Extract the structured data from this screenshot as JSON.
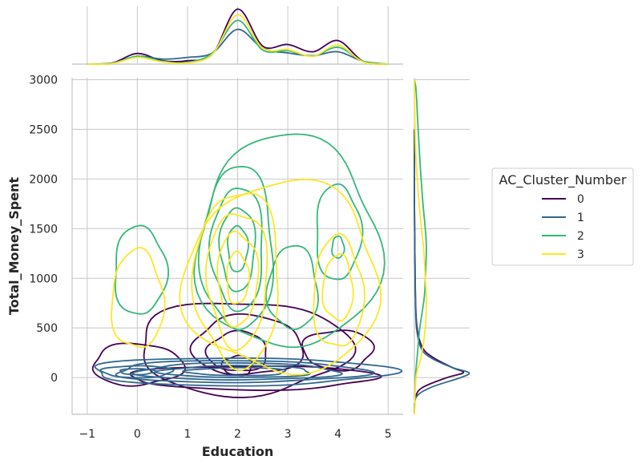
{
  "chart_data": {
    "type": "kde-contour-jointplot",
    "xlabel": "Education",
    "ylabel": "Total_Money_Spent",
    "xlim": [
      -1.3,
      5.3
    ],
    "ylim": [
      -370,
      3020
    ],
    "xticks": [
      -1,
      0,
      1,
      2,
      3,
      4,
      5
    ],
    "yticks": [
      0,
      500,
      1000,
      1500,
      2000,
      2500,
      3000
    ],
    "grid": true,
    "legend_title": "AC_Cluster_Number",
    "legend_position": "right",
    "series": [
      {
        "name": "0",
        "color": "#440154",
        "marginal_x": {
          "x": [
            -1.0,
            -0.5,
            0,
            0.5,
            1,
            1.5,
            2,
            2.5,
            3,
            3.5,
            4,
            4.5,
            5
          ],
          "density": [
            0,
            0.02,
            0.19,
            0.06,
            0.06,
            0.18,
            0.98,
            0.32,
            0.35,
            0.22,
            0.42,
            0.05,
            0
          ]
        },
        "marginal_y": {
          "y": [
            -370,
            -200,
            -100,
            0,
            50,
            100,
            200,
            300,
            500,
            800,
            1200,
            1800,
            2500
          ],
          "density": [
            0,
            0.02,
            0.15,
            0.6,
            0.9,
            0.7,
            0.35,
            0.15,
            0.05,
            0.02,
            0.01,
            0,
            0
          ]
        },
        "contours": [
          {
            "cx": 2.3,
            "cy": 0,
            "rx": 2.45,
            "ry": 120
          },
          {
            "cx": 2.1,
            "cy": 300,
            "rx": 2.1,
            "ry": 470
          },
          {
            "cx": 0.0,
            "cy": 130,
            "rx": 0.9,
            "ry": 210
          },
          {
            "cx": 2.2,
            "cy": 320,
            "rx": 1.1,
            "ry": 300
          },
          {
            "cx": 2.0,
            "cy": 260,
            "rx": 0.6,
            "ry": 200
          },
          {
            "cx": 2.0,
            "cy": 120,
            "rx": 0.3,
            "ry": 100
          },
          {
            "cx": 4.0,
            "cy": 280,
            "rx": 0.7,
            "ry": 200
          }
        ]
      },
      {
        "name": "1",
        "color": "#31688e",
        "marginal_x": {
          "x": [
            -1.0,
            -0.5,
            0,
            0.5,
            1,
            1.5,
            2,
            2.5,
            3,
            3.5,
            4,
            4.5,
            5
          ],
          "density": [
            0,
            0.02,
            0.14,
            0.09,
            0.12,
            0.2,
            0.62,
            0.28,
            0.2,
            0.15,
            0.22,
            0.05,
            0
          ]
        },
        "marginal_y": {
          "y": [
            -370,
            -200,
            -100,
            0,
            50,
            100,
            200,
            300,
            500,
            800,
            1200,
            1800,
            2500
          ],
          "density": [
            0,
            0.03,
            0.3,
            0.85,
            1.0,
            0.7,
            0.3,
            0.12,
            0.04,
            0.02,
            0.01,
            0,
            0
          ]
        },
        "contours": [
          {
            "cx": 2.0,
            "cy": 60,
            "rx": 3.0,
            "ry": 140
          },
          {
            "cx": 2.0,
            "cy": 60,
            "rx": 2.5,
            "ry": 110
          },
          {
            "cx": 2.0,
            "cy": 60,
            "rx": 2.0,
            "ry": 85
          },
          {
            "cx": 2.0,
            "cy": 60,
            "rx": 1.5,
            "ry": 60
          },
          {
            "cx": 2.0,
            "cy": 60,
            "rx": 1.0,
            "ry": 40
          },
          {
            "cx": 0.0,
            "cy": 60,
            "rx": 0.7,
            "ry": 60
          },
          {
            "cx": 0.0,
            "cy": 60,
            "rx": 0.35,
            "ry": 30
          }
        ]
      },
      {
        "name": "2",
        "color": "#35b779",
        "marginal_x": {
          "x": [
            -1.0,
            -0.5,
            0,
            0.5,
            1,
            1.5,
            2,
            2.5,
            3,
            3.5,
            4,
            4.5,
            5
          ],
          "density": [
            0,
            0.01,
            0.14,
            0.05,
            0.03,
            0.2,
            0.78,
            0.25,
            0.24,
            0.14,
            0.3,
            0.05,
            0
          ]
        },
        "marginal_y": {
          "y": [
            -370,
            0,
            200,
            500,
            800,
            1000,
            1300,
            1500,
            1800,
            2200,
            2600,
            2900,
            3000
          ],
          "density": [
            0,
            0.02,
            0.05,
            0.1,
            0.18,
            0.2,
            0.22,
            0.2,
            0.15,
            0.1,
            0.06,
            0.03,
            0
          ]
        },
        "contours": [
          {
            "cx": 0.05,
            "cy": 1075,
            "rx": 0.52,
            "ry": 445
          },
          {
            "cx": 3.0,
            "cy": 1350,
            "rx": 1.82,
            "ry": 1070
          },
          {
            "cx": 2.0,
            "cy": 1300,
            "rx": 0.72,
            "ry": 820
          },
          {
            "cx": 2.0,
            "cy": 1300,
            "rx": 0.52,
            "ry": 620
          },
          {
            "cx": 2.0,
            "cy": 1300,
            "rx": 0.35,
            "ry": 420
          },
          {
            "cx": 2.0,
            "cy": 1300,
            "rx": 0.2,
            "ry": 230
          },
          {
            "cx": 4.0,
            "cy": 1460,
            "rx": 0.45,
            "ry": 480
          },
          {
            "cx": 4.0,
            "cy": 1310,
            "rx": 0.12,
            "ry": 110
          },
          {
            "cx": 3.1,
            "cy": 900,
            "rx": 0.5,
            "ry": 420
          }
        ]
      },
      {
        "name": "3",
        "color": "#fde725",
        "marginal_x": {
          "x": [
            -1.0,
            -0.5,
            0,
            0.5,
            1,
            1.5,
            2,
            2.5,
            3,
            3.5,
            4,
            4.5,
            5
          ],
          "density": [
            0,
            0.01,
            0.12,
            0.04,
            0.02,
            0.18,
            0.88,
            0.28,
            0.26,
            0.14,
            0.34,
            0.04,
            0
          ]
        },
        "marginal_y": {
          "y": [
            -370,
            0,
            200,
            500,
            800,
            1000,
            1300,
            1500,
            1800,
            2200,
            2600,
            2900,
            3000
          ],
          "density": [
            0,
            0.03,
            0.12,
            0.2,
            0.22,
            0.2,
            0.17,
            0.13,
            0.08,
            0.03,
            0.01,
            0,
            0
          ]
        },
        "contours": [
          {
            "cx": 0.0,
            "cy": 780,
            "rx": 0.52,
            "ry": 495
          },
          {
            "cx": 2.9,
            "cy": 1000,
            "rx": 1.95,
            "ry": 960
          },
          {
            "cx": 2.0,
            "cy": 1000,
            "rx": 0.85,
            "ry": 880
          },
          {
            "cx": 2.0,
            "cy": 1000,
            "rx": 0.6,
            "ry": 680
          },
          {
            "cx": 2.0,
            "cy": 1000,
            "rx": 0.4,
            "ry": 470
          },
          {
            "cx": 2.0,
            "cy": 1000,
            "rx": 0.22,
            "ry": 260
          },
          {
            "cx": 4.0,
            "cy": 850,
            "rx": 0.5,
            "ry": 560
          },
          {
            "cx": 4.0,
            "cy": 900,
            "rx": 0.3,
            "ry": 330
          }
        ]
      }
    ]
  }
}
